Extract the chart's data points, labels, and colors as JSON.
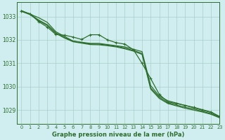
{
  "title": "Graphe pression niveau de la mer (hPa)",
  "background_color": "#d0eef0",
  "plot_background": "#d0eef0",
  "grid_color": "#a8cfc8",
  "line_color": "#2d6e2d",
  "xlim": [
    -0.5,
    23
  ],
  "ylim": [
    1028.4,
    1033.6
  ],
  "yticks": [
    1029,
    1030,
    1031,
    1032,
    1033
  ],
  "xticks": [
    0,
    1,
    2,
    3,
    4,
    5,
    6,
    7,
    8,
    9,
    10,
    11,
    12,
    13,
    14,
    15,
    16,
    17,
    18,
    19,
    20,
    21,
    22,
    23
  ],
  "series_plain": [
    [
      1033.25,
      1033.1,
      1032.95,
      1032.75,
      1032.35,
      1032.15,
      1031.95,
      1031.9,
      1031.85,
      1031.85,
      1031.8,
      1031.75,
      1031.7,
      1031.6,
      1031.5,
      1030.05,
      1029.6,
      1029.4,
      1029.3,
      1029.2,
      1029.1,
      1029.0,
      1028.9,
      1028.72
    ],
    [
      1033.25,
      1033.1,
      1032.85,
      1032.65,
      1032.3,
      1032.1,
      1031.95,
      1031.88,
      1031.83,
      1031.82,
      1031.78,
      1031.73,
      1031.65,
      1031.55,
      1031.42,
      1029.95,
      1029.55,
      1029.32,
      1029.22,
      1029.12,
      1029.05,
      1028.95,
      1028.85,
      1028.7
    ],
    [
      1033.22,
      1033.08,
      1032.82,
      1032.62,
      1032.28,
      1032.08,
      1031.92,
      1031.86,
      1031.8,
      1031.79,
      1031.75,
      1031.7,
      1031.62,
      1031.52,
      1031.38,
      1029.9,
      1029.5,
      1029.28,
      1029.18,
      1029.08,
      1029.0,
      1028.92,
      1028.82,
      1028.67
    ]
  ],
  "series_marker": [
    1033.22,
    1033.12,
    1032.78,
    1032.55,
    1032.23,
    1032.2,
    1032.12,
    1032.02,
    1032.22,
    1032.22,
    1032.0,
    1031.88,
    1031.82,
    1031.58,
    1031.0,
    1030.35,
    1029.67,
    1029.35,
    1029.28,
    1029.2,
    1029.12,
    1029.02,
    1028.92,
    1028.73
  ]
}
